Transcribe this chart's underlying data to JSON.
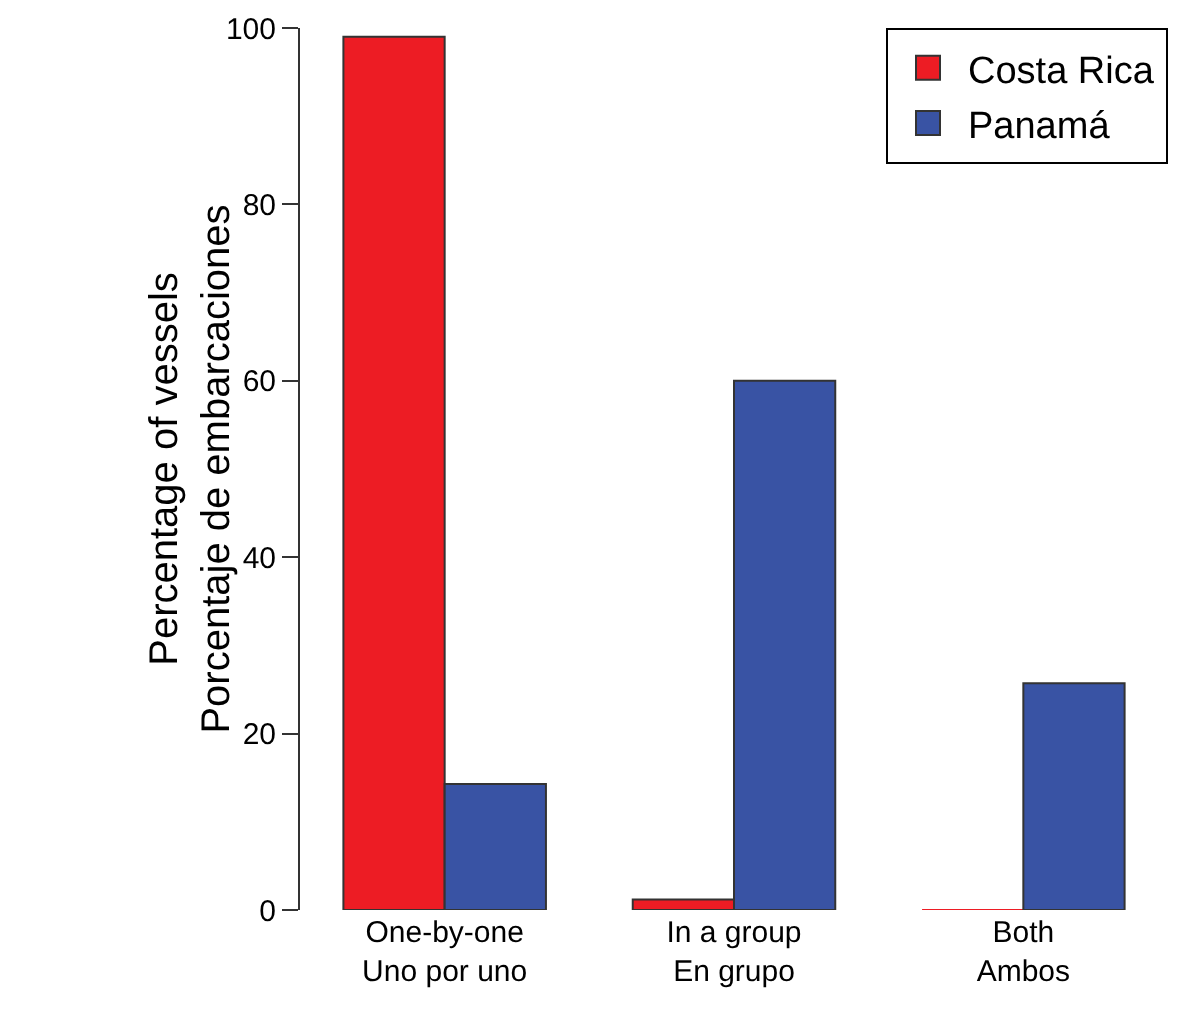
{
  "chart_data": {
    "type": "bar",
    "ylabel": "Percentage of vessels\nPorcentaje de embarcaciones",
    "categories": [
      "One-by-one\nUno por uno",
      "In a group\nEn grupo",
      "Both\nAmbos"
    ],
    "series": [
      {
        "name": "Costa Rica",
        "color": "#ed1c24",
        "values": [
          99,
          1.2,
          0
        ]
      },
      {
        "name": "Panamá",
        "color": "#3953a4",
        "values": [
          14.3,
          60,
          25.7
        ]
      }
    ],
    "ylim": [
      0,
      100
    ],
    "yticks": [
      0,
      20,
      40,
      60,
      80,
      100
    ],
    "grid": false,
    "legend": "top right"
  }
}
